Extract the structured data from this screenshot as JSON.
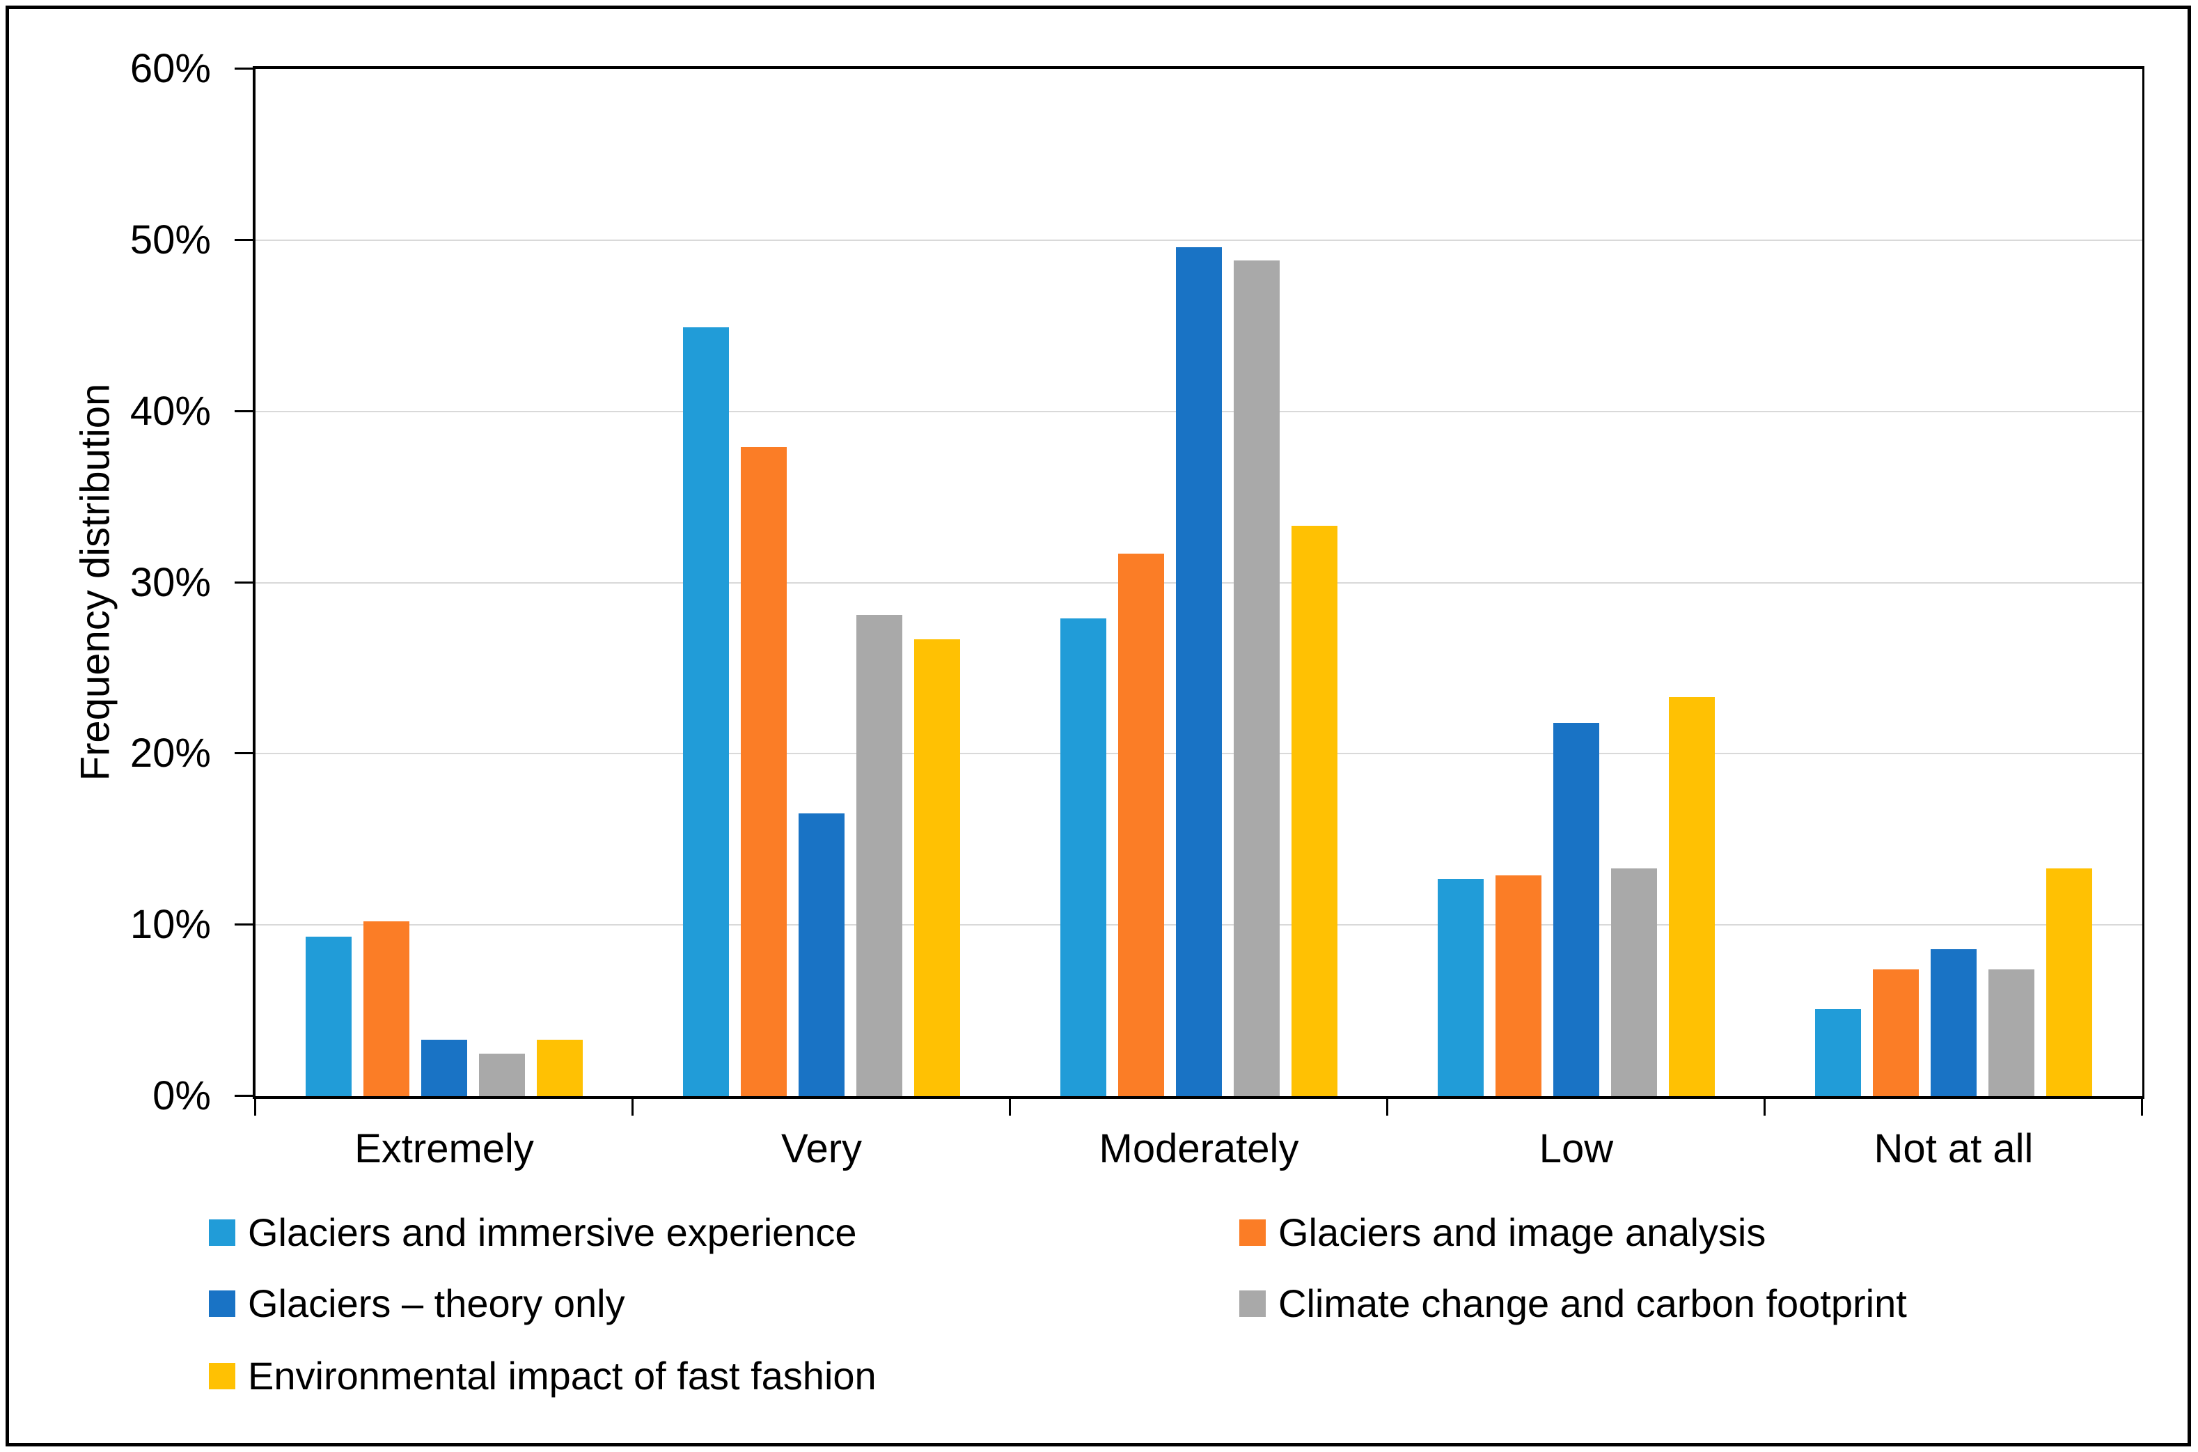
{
  "chart_data": {
    "type": "bar",
    "title": "",
    "ylabel": "Frequency distribution",
    "xlabel": "",
    "ylim": [
      0,
      60
    ],
    "y_tick_step": 10,
    "y_ticks": [
      "0%",
      "10%",
      "20%",
      "30%",
      "40%",
      "50%",
      "60%"
    ],
    "grid": "horizontal",
    "legend_position": "bottom",
    "legend_columns": 2,
    "categories": [
      "Extremely",
      "Very",
      "Moderately",
      "Low",
      "Not at all"
    ],
    "series": [
      {
        "name": "Glaciers and immersive experience",
        "color": "#219CD8",
        "values": [
          9.3,
          44.9,
          27.9,
          12.7,
          5.1
        ]
      },
      {
        "name": "Glaciers and image analysis",
        "color": "#FB7D26",
        "values": [
          10.2,
          37.9,
          31.7,
          12.9,
          7.4
        ]
      },
      {
        "name": "Glaciers – theory only",
        "color": "#1973C5",
        "values": [
          3.3,
          16.5,
          49.6,
          21.8,
          8.6
        ]
      },
      {
        "name": "Climate change and carbon footprint",
        "color": "#A9A9A9",
        "values": [
          2.5,
          28.1,
          48.8,
          13.3,
          7.4
        ]
      },
      {
        "name": "Environmental impact of fast fashion",
        "color": "#FFC103",
        "values": [
          3.3,
          26.7,
          33.3,
          23.3,
          13.3
        ]
      }
    ],
    "colors": {
      "gridline": "#D9D9D9",
      "axis": "#000000",
      "background": "#FFFFFF"
    }
  }
}
